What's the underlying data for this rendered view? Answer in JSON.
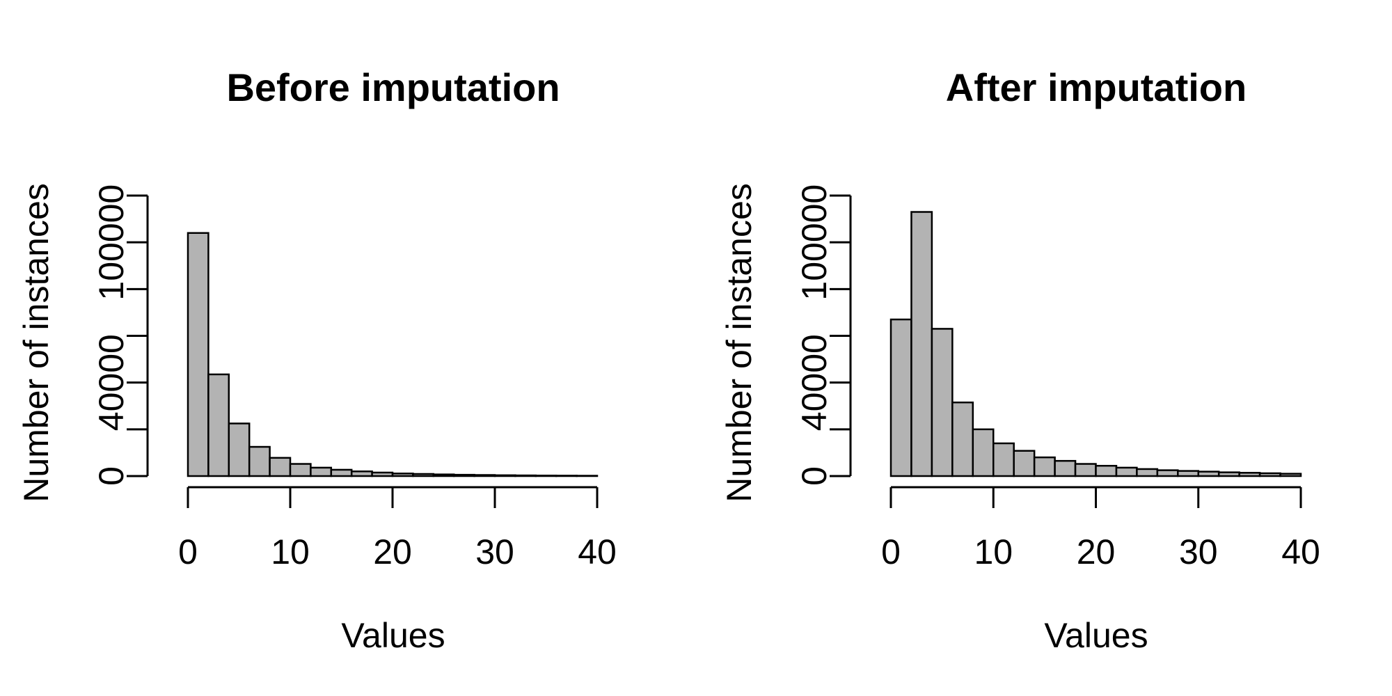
{
  "chart_data": [
    {
      "type": "bar",
      "title": "Before imputation",
      "xlabel": "Values",
      "ylabel": "Number of instances",
      "bin_width": 2,
      "bins_start": 0,
      "xlim": [
        0,
        40
      ],
      "ylim": [
        0,
        120000
      ],
      "x_ticks": [
        0,
        10,
        20,
        30,
        40
      ],
      "x_tick_labels": [
        "0",
        "10",
        "20",
        "30",
        "40"
      ],
      "y_ticks": [
        0,
        20000,
        40000,
        60000,
        80000,
        100000,
        120000
      ],
      "y_tick_labels": [
        "0",
        "40000",
        "100000"
      ],
      "y_tick_label_values": [
        0,
        40000,
        100000
      ],
      "bar_color": "#b3b3b3",
      "values": [
        104000,
        43500,
        22500,
        12500,
        7800,
        5200,
        3600,
        2700,
        2000,
        1500,
        1100,
        900,
        700,
        550,
        450,
        350,
        280,
        220,
        180,
        140
      ]
    },
    {
      "type": "bar",
      "title": "After imputation",
      "xlabel": "Values",
      "ylabel": "Number of instances",
      "bin_width": 2,
      "bins_start": 0,
      "xlim": [
        0,
        40
      ],
      "ylim": [
        0,
        120000
      ],
      "x_ticks": [
        0,
        10,
        20,
        30,
        40
      ],
      "x_tick_labels": [
        "0",
        "10",
        "20",
        "30",
        "40"
      ],
      "y_ticks": [
        0,
        20000,
        40000,
        60000,
        80000,
        100000,
        120000
      ],
      "y_tick_labels": [
        "0",
        "40000",
        "100000"
      ],
      "y_tick_label_values": [
        0,
        40000,
        100000
      ],
      "bar_color": "#b3b3b3",
      "values": [
        67000,
        113000,
        63000,
        31500,
        20000,
        14000,
        10800,
        8000,
        6500,
        5200,
        4400,
        3600,
        3000,
        2500,
        2200,
        1900,
        1600,
        1400,
        1200,
        1000
      ]
    }
  ]
}
